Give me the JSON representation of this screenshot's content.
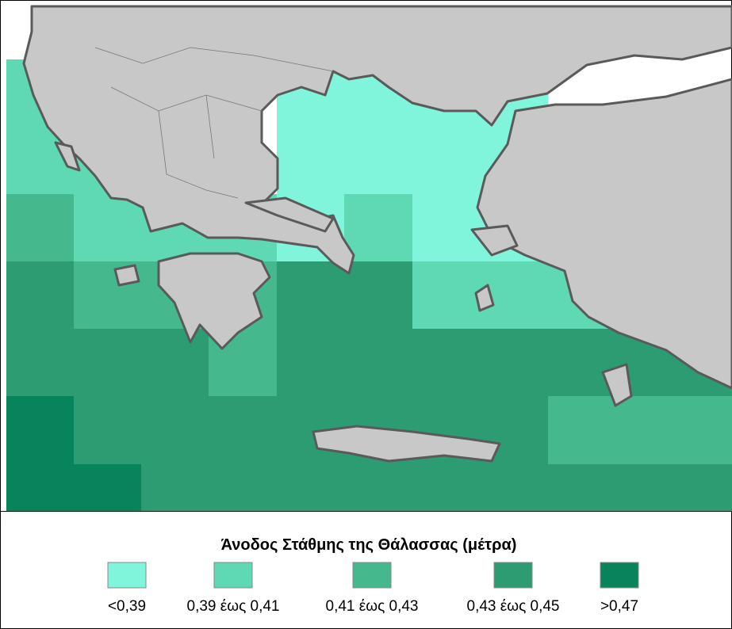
{
  "legend": {
    "title": "Άνοδος Στάθμης της Θάλασσας (μέτρα)",
    "items": [
      {
        "label": "<0,39",
        "color": "#80f5dc"
      },
      {
        "label": "0,39 έως 0,41",
        "color": "#5fd8b4"
      },
      {
        "label": "0,41 έως 0,43",
        "color": "#45b98d"
      },
      {
        "label": "0,43 έως 0,45",
        "color": "#2d9c72"
      },
      {
        "label": ">0,47",
        "color": "#08845d"
      }
    ]
  }
}
